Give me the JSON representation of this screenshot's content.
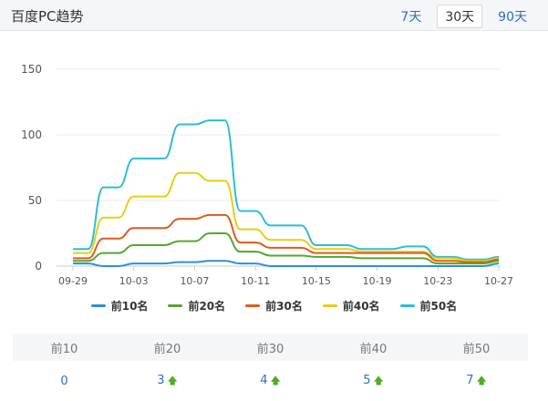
{
  "header": {
    "title": "百度PC趋势",
    "ranges": [
      "7天",
      "30天",
      "90天"
    ],
    "active_range": "30天"
  },
  "chart_data": {
    "type": "line",
    "title": "",
    "xlabel": "",
    "ylabel": "",
    "ylim": [
      0,
      150
    ],
    "yticks": [
      0,
      50,
      100,
      150
    ],
    "grid": true,
    "legend_position": "bottom",
    "x": [
      "09-29",
      "09-30",
      "10-01",
      "10-02",
      "10-03",
      "10-04",
      "10-05",
      "10-06",
      "10-07",
      "10-08",
      "10-09",
      "10-10",
      "10-11",
      "10-12",
      "10-13",
      "10-14",
      "10-15",
      "10-16",
      "10-17",
      "10-18",
      "10-19",
      "10-20",
      "10-21",
      "10-22",
      "10-23",
      "10-24",
      "10-25",
      "10-26",
      "10-27"
    ],
    "xticks": [
      "09-29",
      "10-03",
      "10-07",
      "10-11",
      "10-15",
      "10-19",
      "10-23",
      "10-27"
    ],
    "series": [
      {
        "name": "前10名",
        "color": "#2e8fd6",
        "values": [
          2,
          2,
          0,
          0,
          2,
          2,
          2,
          3,
          3,
          4,
          4,
          2,
          2,
          0,
          0,
          0,
          0,
          0,
          0,
          0,
          0,
          0,
          0,
          0,
          0,
          0,
          0,
          0,
          2
        ]
      },
      {
        "name": "前20名",
        "color": "#52a82b",
        "values": [
          4,
          4,
          10,
          10,
          16,
          16,
          16,
          19,
          19,
          25,
          25,
          11,
          11,
          8,
          8,
          8,
          7,
          7,
          7,
          6,
          6,
          6,
          6,
          6,
          2,
          2,
          2,
          2,
          4
        ]
      },
      {
        "name": "前30名",
        "color": "#e05a1c",
        "values": [
          6,
          6,
          21,
          21,
          29,
          29,
          29,
          36,
          36,
          39,
          39,
          18,
          18,
          14,
          14,
          14,
          10,
          10,
          10,
          10,
          10,
          10,
          10,
          10,
          4,
          4,
          3,
          3,
          5
        ]
      },
      {
        "name": "前40名",
        "color": "#e7cf14",
        "values": [
          10,
          10,
          37,
          37,
          53,
          53,
          53,
          71,
          71,
          65,
          65,
          28,
          28,
          20,
          20,
          20,
          13,
          13,
          13,
          11,
          11,
          11,
          11,
          11,
          6,
          6,
          4,
          4,
          6
        ]
      },
      {
        "name": "前50名",
        "color": "#2cbdd6",
        "values": [
          13,
          13,
          60,
          60,
          82,
          82,
          82,
          108,
          108,
          111,
          111,
          42,
          42,
          31,
          31,
          31,
          16,
          16,
          16,
          13,
          13,
          13,
          15,
          15,
          7,
          7,
          5,
          5,
          7
        ]
      }
    ]
  },
  "summary": {
    "headers": [
      "前10",
      "前20",
      "前30",
      "前40",
      "前50"
    ],
    "values": [
      "0",
      "3",
      "4",
      "5",
      "7"
    ],
    "trend": [
      "",
      "up",
      "up",
      "up",
      "up"
    ]
  }
}
